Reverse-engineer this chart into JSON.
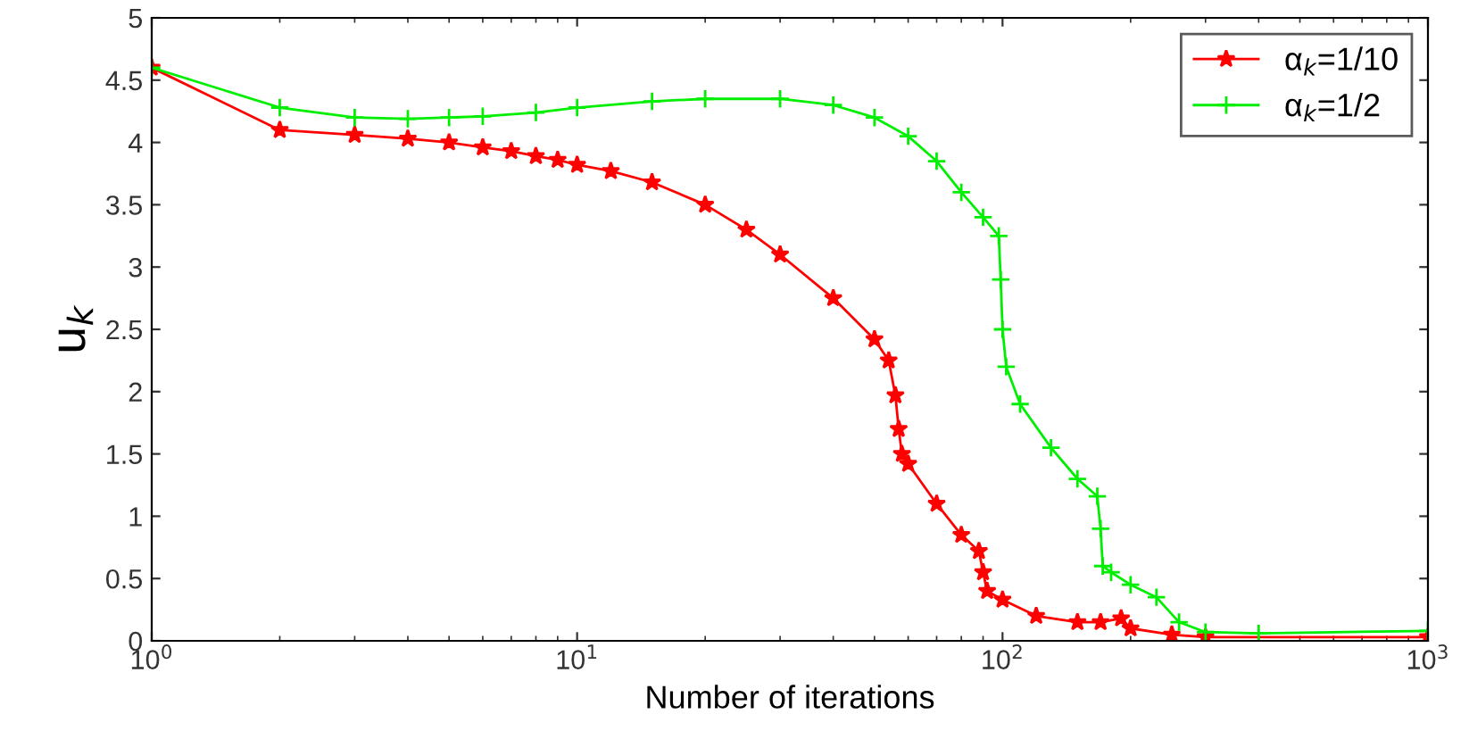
{
  "chart_data": {
    "type": "line",
    "xlabel": "Number of iterations",
    "ylabel": "u$_{k}$",
    "log": "x",
    "xlim": [
      1,
      1000
    ],
    "ylim": [
      0,
      5
    ],
    "xticks": [
      {
        "value": 1,
        "label": "10$^{0}$"
      },
      {
        "value": 10,
        "label": "10$^{1}$"
      },
      {
        "value": 100,
        "label": "10$^{2}$"
      },
      {
        "value": 1000,
        "label": "10$^{3}$"
      }
    ],
    "yticks": [
      0,
      0.5,
      1,
      1.5,
      2,
      2.5,
      3,
      3.5,
      4,
      4.5,
      5
    ],
    "grid": false,
    "legend": "top right",
    "series": [
      {
        "name": "α$_{k}$=1/10",
        "color": "#ff0000",
        "marker": "star",
        "x": [
          1,
          2,
          3,
          4,
          5,
          6,
          7,
          8,
          9,
          10,
          12,
          15,
          20,
          25,
          30,
          40,
          50,
          54,
          56,
          57,
          58,
          60,
          70,
          80,
          88,
          90,
          92,
          100,
          120,
          150,
          170,
          190,
          200,
          250,
          300,
          1000
        ],
        "values": [
          4.6,
          4.1,
          4.06,
          4.03,
          4.0,
          3.96,
          3.93,
          3.89,
          3.86,
          3.82,
          3.77,
          3.68,
          3.5,
          3.3,
          3.1,
          2.75,
          2.42,
          2.25,
          1.97,
          1.7,
          1.5,
          1.42,
          1.1,
          0.85,
          0.72,
          0.55,
          0.4,
          0.33,
          0.2,
          0.15,
          0.15,
          0.18,
          0.1,
          0.05,
          0.03,
          0.03
        ]
      },
      {
        "name": "α$_{k}$=1/2",
        "color": "#00ee00",
        "marker": "cross",
        "x": [
          1,
          2,
          3,
          4,
          5,
          6,
          8,
          10,
          15,
          20,
          30,
          40,
          50,
          60,
          70,
          80,
          90,
          98,
          99,
          100,
          102,
          110,
          130,
          150,
          167,
          170,
          172,
          180,
          200,
          230,
          260,
          300,
          400,
          1000
        ],
        "values": [
          4.6,
          4.28,
          4.2,
          4.19,
          4.2,
          4.21,
          4.24,
          4.28,
          4.33,
          4.35,
          4.35,
          4.3,
          4.2,
          4.05,
          3.85,
          3.6,
          3.4,
          3.25,
          2.9,
          2.5,
          2.2,
          1.9,
          1.55,
          1.3,
          1.16,
          0.9,
          0.6,
          0.55,
          0.45,
          0.35,
          0.15,
          0.07,
          0.06,
          0.08
        ]
      }
    ]
  }
}
